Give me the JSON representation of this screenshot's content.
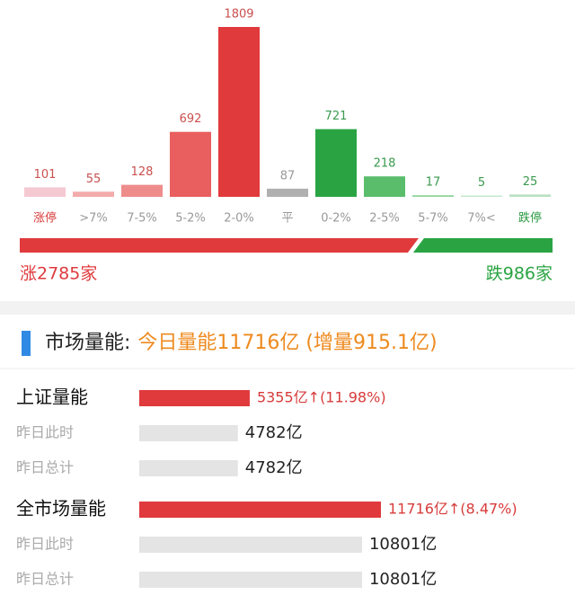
{
  "chart_data": [
    {
      "type": "bar",
      "categories": [
        "涨停",
        ">7%",
        "7-5%",
        "5-2%",
        "2-0%",
        "平",
        "0-2%",
        "2-5%",
        "5-7%",
        "7%<",
        "跌停"
      ],
      "values": [
        101,
        55,
        128,
        692,
        1809,
        87,
        721,
        218,
        17,
        5,
        25
      ],
      "colors": [
        "#f5c9d2",
        "#f2abab",
        "#ee8c8c",
        "#e95e5e",
        "#e03a3d",
        "#b0b0b0",
        "#2aa443",
        "#5abd6c",
        "#8fd49b",
        "#c4e8cb",
        "#b9e0c1"
      ],
      "value_colors": [
        "#c9504f",
        "#c9504f",
        "#c9504f",
        "#c9504f",
        "#c9504f",
        "#999999",
        "#3a9a4e",
        "#3a9a4e",
        "#3a9a4e",
        "#3a9a4e",
        "#3a9a4e"
      ],
      "category_colors": [
        "#d83b3b",
        "#999999",
        "#999999",
        "#999999",
        "#999999",
        "#999999",
        "#999999",
        "#999999",
        "#999999",
        "#999999",
        "#2a9a40"
      ],
      "split": {
        "values": [
          2785,
          986
        ],
        "value_labels": [
          "涨2785家",
          "跌986家"
        ],
        "colors": [
          "#e03a3d",
          "#2aa443"
        ]
      }
    },
    {
      "type": "hbar",
      "title": "市场量能:",
      "subtitle": "今日量能11716亿 (增量915.1亿)",
      "categories": [
        "上证量能",
        "昨日此时",
        "昨日总计",
        "全市场量能",
        "昨日此时",
        "昨日总计"
      ],
      "values": [
        5355,
        4782,
        4782,
        11716,
        10801,
        10801
      ],
      "value_labels": [
        "5355亿↑(11.98%)",
        "4782亿",
        "4782亿",
        "11716亿↑(8.47%)",
        "10801亿",
        "10801亿"
      ],
      "colors": [
        "#e03a3d",
        "#e4e4e4",
        "#e4e4e4",
        "#e03a3d",
        "#e4e4e4",
        "#e4e4e4"
      ],
      "emphasis": [
        true,
        false,
        false,
        true,
        false,
        false
      ]
    }
  ]
}
